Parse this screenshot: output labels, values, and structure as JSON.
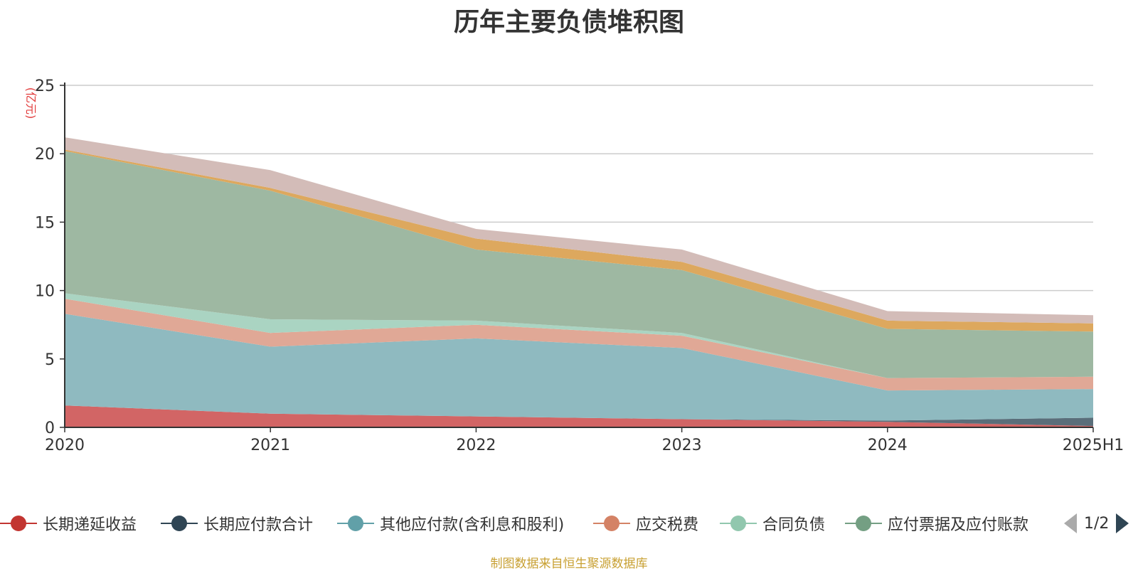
{
  "chart_data": {
    "type": "area",
    "stacked": true,
    "title": "历年主要负债堆积图",
    "unit_label": "(亿元)",
    "categories": [
      "2020",
      "2021",
      "2022",
      "2023",
      "2024",
      "2025H1"
    ],
    "ylim": [
      0,
      25
    ],
    "yticks": [
      "0",
      "5",
      "10",
      "15",
      "20",
      "25"
    ],
    "grid": true,
    "series": [
      {
        "name": "长期递延收益",
        "color": "#d26565",
        "legend_color": "#c23531",
        "values": [
          1.6,
          1.0,
          0.8,
          0.6,
          0.4,
          0.1
        ]
      },
      {
        "name": "长期应付款合计",
        "color": "#5a6e7a",
        "legend_color": "#2f4554",
        "values": [
          0.0,
          0.0,
          0.0,
          0.0,
          0.1,
          0.6
        ]
      },
      {
        "name": "其他应付款(含利息和股利)",
        "color": "#8fbac0",
        "legend_color": "#61a0a8",
        "values": [
          6.7,
          4.9,
          5.7,
          5.2,
          2.2,
          2.1
        ]
      },
      {
        "name": "应交税费",
        "color": "#e0a896",
        "legend_color": "#d48265",
        "values": [
          1.1,
          1.0,
          1.0,
          0.9,
          0.9,
          0.9
        ]
      },
      {
        "name": "合同负债",
        "color": "#aad4c2",
        "legend_color": "#91c7ae",
        "values": [
          0.4,
          1.0,
          0.3,
          0.2,
          0.0,
          0.0
        ]
      },
      {
        "name": "应付票据及应付账款",
        "color": "#9eb8a2",
        "legend_color": "#749f83",
        "values": [
          10.4,
          9.4,
          5.2,
          4.6,
          3.6,
          3.3
        ]
      },
      {
        "name": "",
        "color": "#dda85e",
        "values": [
          0.1,
          0.2,
          0.8,
          0.6,
          0.6,
          0.6
        ]
      },
      {
        "name": "",
        "color": "#d3bcb8",
        "values": [
          0.9,
          1.3,
          0.7,
          0.9,
          0.7,
          0.6
        ]
      }
    ]
  },
  "legend": {
    "items": [
      {
        "label": "长期递延收益"
      },
      {
        "label": "长期应付款合计"
      },
      {
        "label": "其他应付款(含利息和股利)"
      },
      {
        "label": "应交税费"
      },
      {
        "label": "合同负债"
      },
      {
        "label": "应付票据及应付账款"
      }
    ],
    "page_text": "1/2"
  },
  "source_note": "制图数据来自恒生聚源数据库"
}
